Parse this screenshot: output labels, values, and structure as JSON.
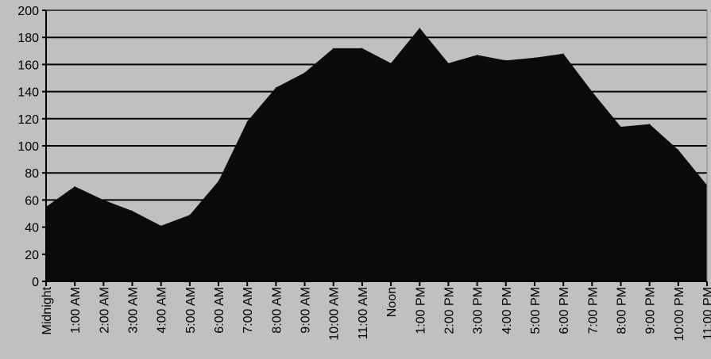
{
  "chart_data": {
    "type": "area",
    "title": "",
    "xlabel": "",
    "ylabel": "",
    "ylim": [
      0,
      200
    ],
    "yticks": [
      0,
      20,
      40,
      60,
      80,
      100,
      120,
      140,
      160,
      180,
      200
    ],
    "grid": "horizontal",
    "legend": "none",
    "categories": [
      "Midnight",
      "1:00 AM",
      "2:00 AM",
      "3:00 AM",
      "4:00 AM",
      "5:00 AM",
      "6:00 AM",
      "7:00 AM",
      "8:00 AM",
      "9:00 AM",
      "10:00 AM",
      "11:00 AM",
      "Noon",
      "1:00 PM",
      "2:00 PM",
      "3:00 PM",
      "4:00 PM",
      "5:00 PM",
      "6:00 PM",
      "7:00 PM",
      "8:00 PM",
      "9:00 PM",
      "10:00 PM",
      "11:00 PM"
    ],
    "series": [
      {
        "values": [
          55,
          70,
          60,
          52,
          41,
          49,
          74,
          118,
          143,
          154,
          172,
          172,
          161,
          187,
          161,
          167,
          163,
          165,
          168,
          140,
          114,
          116,
          97,
          71
        ]
      }
    ],
    "colors": {
      "background": "#c0c0c0",
      "area_fill": "#0a0a0a",
      "gridline": "#000000",
      "axis": "#000000",
      "text": "#000000"
    }
  }
}
